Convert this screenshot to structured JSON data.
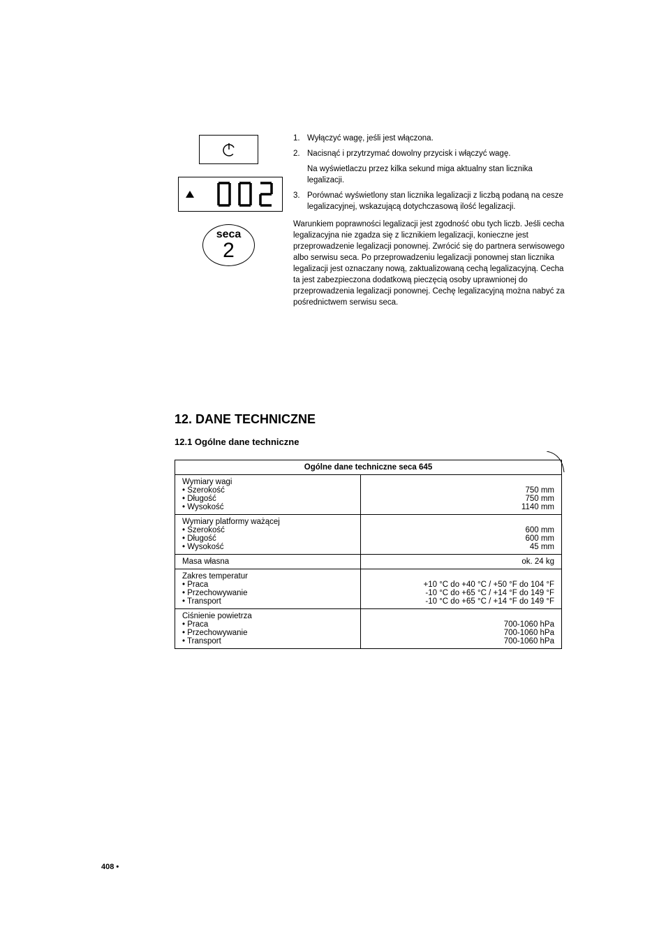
{
  "graphics": {
    "lcd_value": "002",
    "seca_brand": "seca",
    "seca_number": "2"
  },
  "steps": {
    "s1_num": "1.",
    "s1_text": "Wyłączyć wagę, jeśli jest włączona.",
    "s2_num": "2.",
    "s2_text": "Nacisnąć i przytrzymać dowolny przycisk i włączyć wagę.",
    "s2_sub": "Na wyświetlaczu przez kilka sekund miga aktualny stan licznika legalizacji.",
    "s3_num": "3.",
    "s3_text": "Porównać wyświetlony stan licznika legalizacji z liczbą podaną na cesze legalizacyjnej, wskazującą dotychczasową ilość legalizacji."
  },
  "paragraph": "Warunkiem poprawności legalizacji jest zgodność obu tych liczb. Jeśli cecha legalizacyjna nie zgadza się z licznikiem legalizacji, konieczne jest przeprowadzenie legalizacji ponownej. Zwrócić się do partnera serwisowego albo serwisu seca. Po przeprowadzeniu legalizacji ponownej stan licznika legalizacji jest oznaczany nową, zaktualizowaną cechą legalizacyjną. Cecha ta jest zabezpieczona dodatkową pieczęcią osoby uprawnionej do przeprowadzenia legalizacji ponownej. Cechę legalizacyjną można nabyć za pośrednictwem serwisu seca.",
  "section_heading": "12. DANE TECHNICZNE",
  "subsection_heading": "12.1 Ogólne dane techniczne",
  "table": {
    "header": "Ogólne dane techniczne seca 645",
    "rows": [
      {
        "label": "Wymiary wagi\n• Szerokość\n• Długość\n• Wysokość",
        "value": "\n750 mm\n750 mm\n1140 mm"
      },
      {
        "label": "Wymiary platformy ważącej\n• Szerokość\n• Długość\n• Wysokość",
        "value": "\n600 mm\n600 mm\n45 mm"
      },
      {
        "label": "Masa własna",
        "value": "ok. 24 kg"
      },
      {
        "label": "Zakres temperatur\n• Praca\n• Przechowywanie\n• Transport",
        "value": "\n+10 °C do +40 °C / +50 °F do 104 °F\n-10 °C do +65 °C / +14 °F do 149 °F\n-10 °C do +65 °C / +14 °F do 149 °F"
      },
      {
        "label": "Ciśnienie powietrza\n• Praca\n• Przechowywanie\n• Transport",
        "value": "\n700-1060 hPa\n700-1060 hPa\n700-1060 hPa"
      }
    ]
  },
  "footer": "408 •"
}
